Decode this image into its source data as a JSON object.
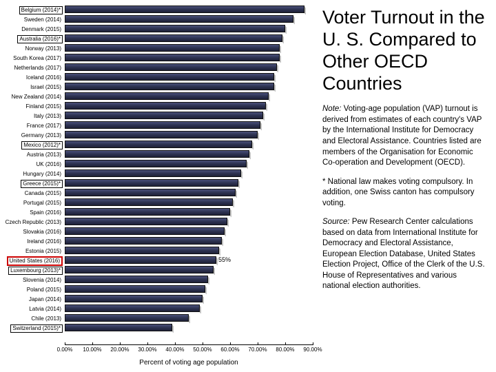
{
  "chart": {
    "type": "bar-horizontal",
    "axis_title": "Percent of voting age population",
    "xlim": [
      0,
      90
    ],
    "xtick_step": 10,
    "xtick_format_suffix": ".00%",
    "bar_color_gradient": [
      "#4a507a",
      "#2e3352",
      "#1e2138"
    ],
    "background_color": "#ffffff",
    "label_fontsize_pt": 8,
    "axis_label_fontsize_pt": 8,
    "axis_title_fontsize_pt": 10,
    "box_border_color": "#000000",
    "highlight_box_border_color": "#cc0000",
    "rows": [
      {
        "label": "Belgium (2014)*",
        "value": 87,
        "boxed": true
      },
      {
        "label": "Sweden (2014)",
        "value": 83
      },
      {
        "label": "Denmark (2015)",
        "value": 80
      },
      {
        "label": "Australia (2016)*",
        "value": 79,
        "boxed": true
      },
      {
        "label": "Norway (2013)",
        "value": 78
      },
      {
        "label": "South Korea (2017)",
        "value": 78
      },
      {
        "label": "Netherlands (2017)",
        "value": 77
      },
      {
        "label": "Iceland (2016)",
        "value": 76
      },
      {
        "label": "Israel (2015)",
        "value": 76
      },
      {
        "label": "New Zealand (2014)",
        "value": 74
      },
      {
        "label": "Finland (2015)",
        "value": 73
      },
      {
        "label": "Italy (2013)",
        "value": 72
      },
      {
        "label": "France (2017)",
        "value": 71
      },
      {
        "label": "Germany (2013)",
        "value": 70
      },
      {
        "label": "Mexico (2012)*",
        "value": 68,
        "boxed": true
      },
      {
        "label": "Austria (2013)",
        "value": 67
      },
      {
        "label": "UK (2016)",
        "value": 66
      },
      {
        "label": "Hungary (2014)",
        "value": 64
      },
      {
        "label": "Greece (2015)*",
        "value": 63,
        "boxed": true
      },
      {
        "label": "Canada (2015)",
        "value": 62
      },
      {
        "label": "Portugal (2015)",
        "value": 61
      },
      {
        "label": "Spain (2016)",
        "value": 60
      },
      {
        "label": "Czech Republic (2013)",
        "value": 59
      },
      {
        "label": "Slovakia (2016)",
        "value": 58
      },
      {
        "label": "Ireland (2016)",
        "value": 57
      },
      {
        "label": "Estonia (2015)",
        "value": 56
      },
      {
        "label": "United States (2016)",
        "value": 55,
        "red_boxed": true,
        "show_value": "55%"
      },
      {
        "label": "Luxembourg (2013)*",
        "value": 54,
        "boxed": true
      },
      {
        "label": "Slovenia (2014)",
        "value": 52
      },
      {
        "label": "Poland (2015)",
        "value": 51
      },
      {
        "label": "Japan (2014)",
        "value": 50
      },
      {
        "label": "Latvia (2014)",
        "value": 49
      },
      {
        "label": "Chile (2013)",
        "value": 45
      },
      {
        "label": "Switzerland (2015)*",
        "value": 39,
        "boxed": true
      }
    ]
  },
  "side": {
    "title": "Voter Turnout in the U. S. Compared to Other OECD Countries",
    "title_fontsize_pt": 27,
    "note_label": "Note:",
    "note_text": " Voting-age population (VAP) turnout is derived from estimates of each country's VAP by the International Institute for Democracy and Electoral Assistance. Countries listed are members of the Organisation for Economic Co-operation and Development (OECD).",
    "footnote_text": "* National law makes voting compulsory. In addition, one Swiss canton has compulsory voting.",
    "source_label": "Source:",
    "source_text": " Pew Research Center calculations based on data from International Institute for Democracy and Electoral Assistance, European Election Database, United States Election Project, Office of the Clerk of the U.S. House of Representatives and various national election authorities.",
    "body_fontsize_pt": 11.5,
    "text_color": "#000000"
  }
}
